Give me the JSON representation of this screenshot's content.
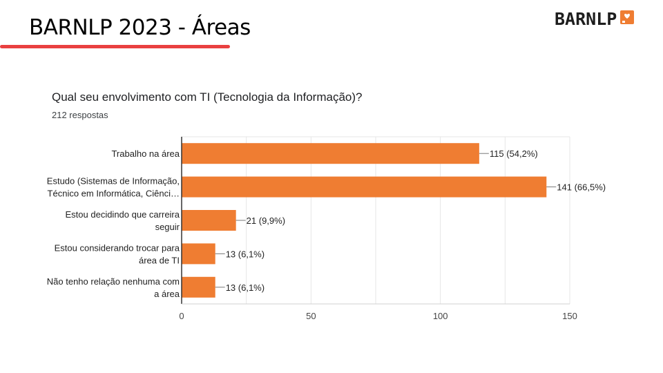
{
  "slide": {
    "title": "BARNLP 2023 - Áreas",
    "logo_text": "BARNLP",
    "logo_icon": "heart-badge-icon",
    "accent_color": "#e94040"
  },
  "question": "Qual seu envolvimento com TI (Tecnologia da Informação)?",
  "responses": "212 respostas",
  "chart_data": {
    "type": "bar",
    "orientation": "horizontal",
    "categories": [
      [
        "Trabalho na área"
      ],
      [
        "Estudo (Sistemas de Informação,",
        "Técnico em Informática, Ciênci…"
      ],
      [
        "Estou decidindo que carreira",
        "seguir"
      ],
      [
        "Estou considerando trocar para",
        "área de TI"
      ],
      [
        "Não tenho relação nenhuma com",
        "a área"
      ]
    ],
    "values": [
      115,
      141,
      21,
      13,
      13
    ],
    "data_labels": [
      "115 (54,2%)",
      "141 (66,5%)",
      "21 (9,9%)",
      "13 (6,1%)",
      "13 (6,1%)"
    ],
    "xlim": [
      0,
      150
    ],
    "xticks": [
      0,
      50,
      100,
      150
    ],
    "xtick_labels": [
      "0",
      "50",
      "100",
      "150"
    ],
    "grid": true,
    "bar_color": "#ef7d32"
  }
}
